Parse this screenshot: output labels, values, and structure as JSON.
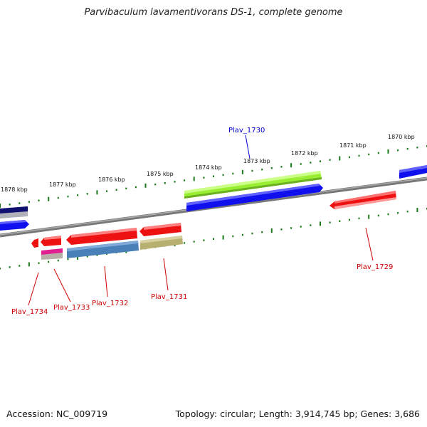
{
  "title": "Parvibaculum lavamentivorans DS-1, complete genome",
  "footer": {
    "accession": "Accession: NC_009719",
    "summary": "Topology: circular; Length: 3,914,745 bp; Genes: 3,686"
  },
  "kbp_labels": [
    "1878 kbp",
    "1877 kbp",
    "1876 kbp",
    "1875 kbp",
    "1874 kbp",
    "1873 kbp",
    "1872 kbp",
    "1871 kbp",
    "1870 kbp"
  ],
  "gene_labels": {
    "plav_1730": "Plav_1730",
    "plav_1729": "Plav_1729",
    "plav_1731": "Plav_1731",
    "plav_1732": "Plav_1732",
    "plav_1733": "Plav_1733",
    "plav_1734": "Plav_1734"
  },
  "colors": {
    "backbone": "#808080",
    "tick": "#1a7a1a",
    "gene_red": "#ee1111",
    "gene_blue": "#1010ee",
    "gene_green": "#99ee33",
    "gene_steel": "#4a80b8",
    "gene_olive": "#b8b070",
    "gene_pink": "#e02090",
    "gene_navy": "#101070",
    "label_red": "#cc0000",
    "label_blue": "#0000cc"
  }
}
